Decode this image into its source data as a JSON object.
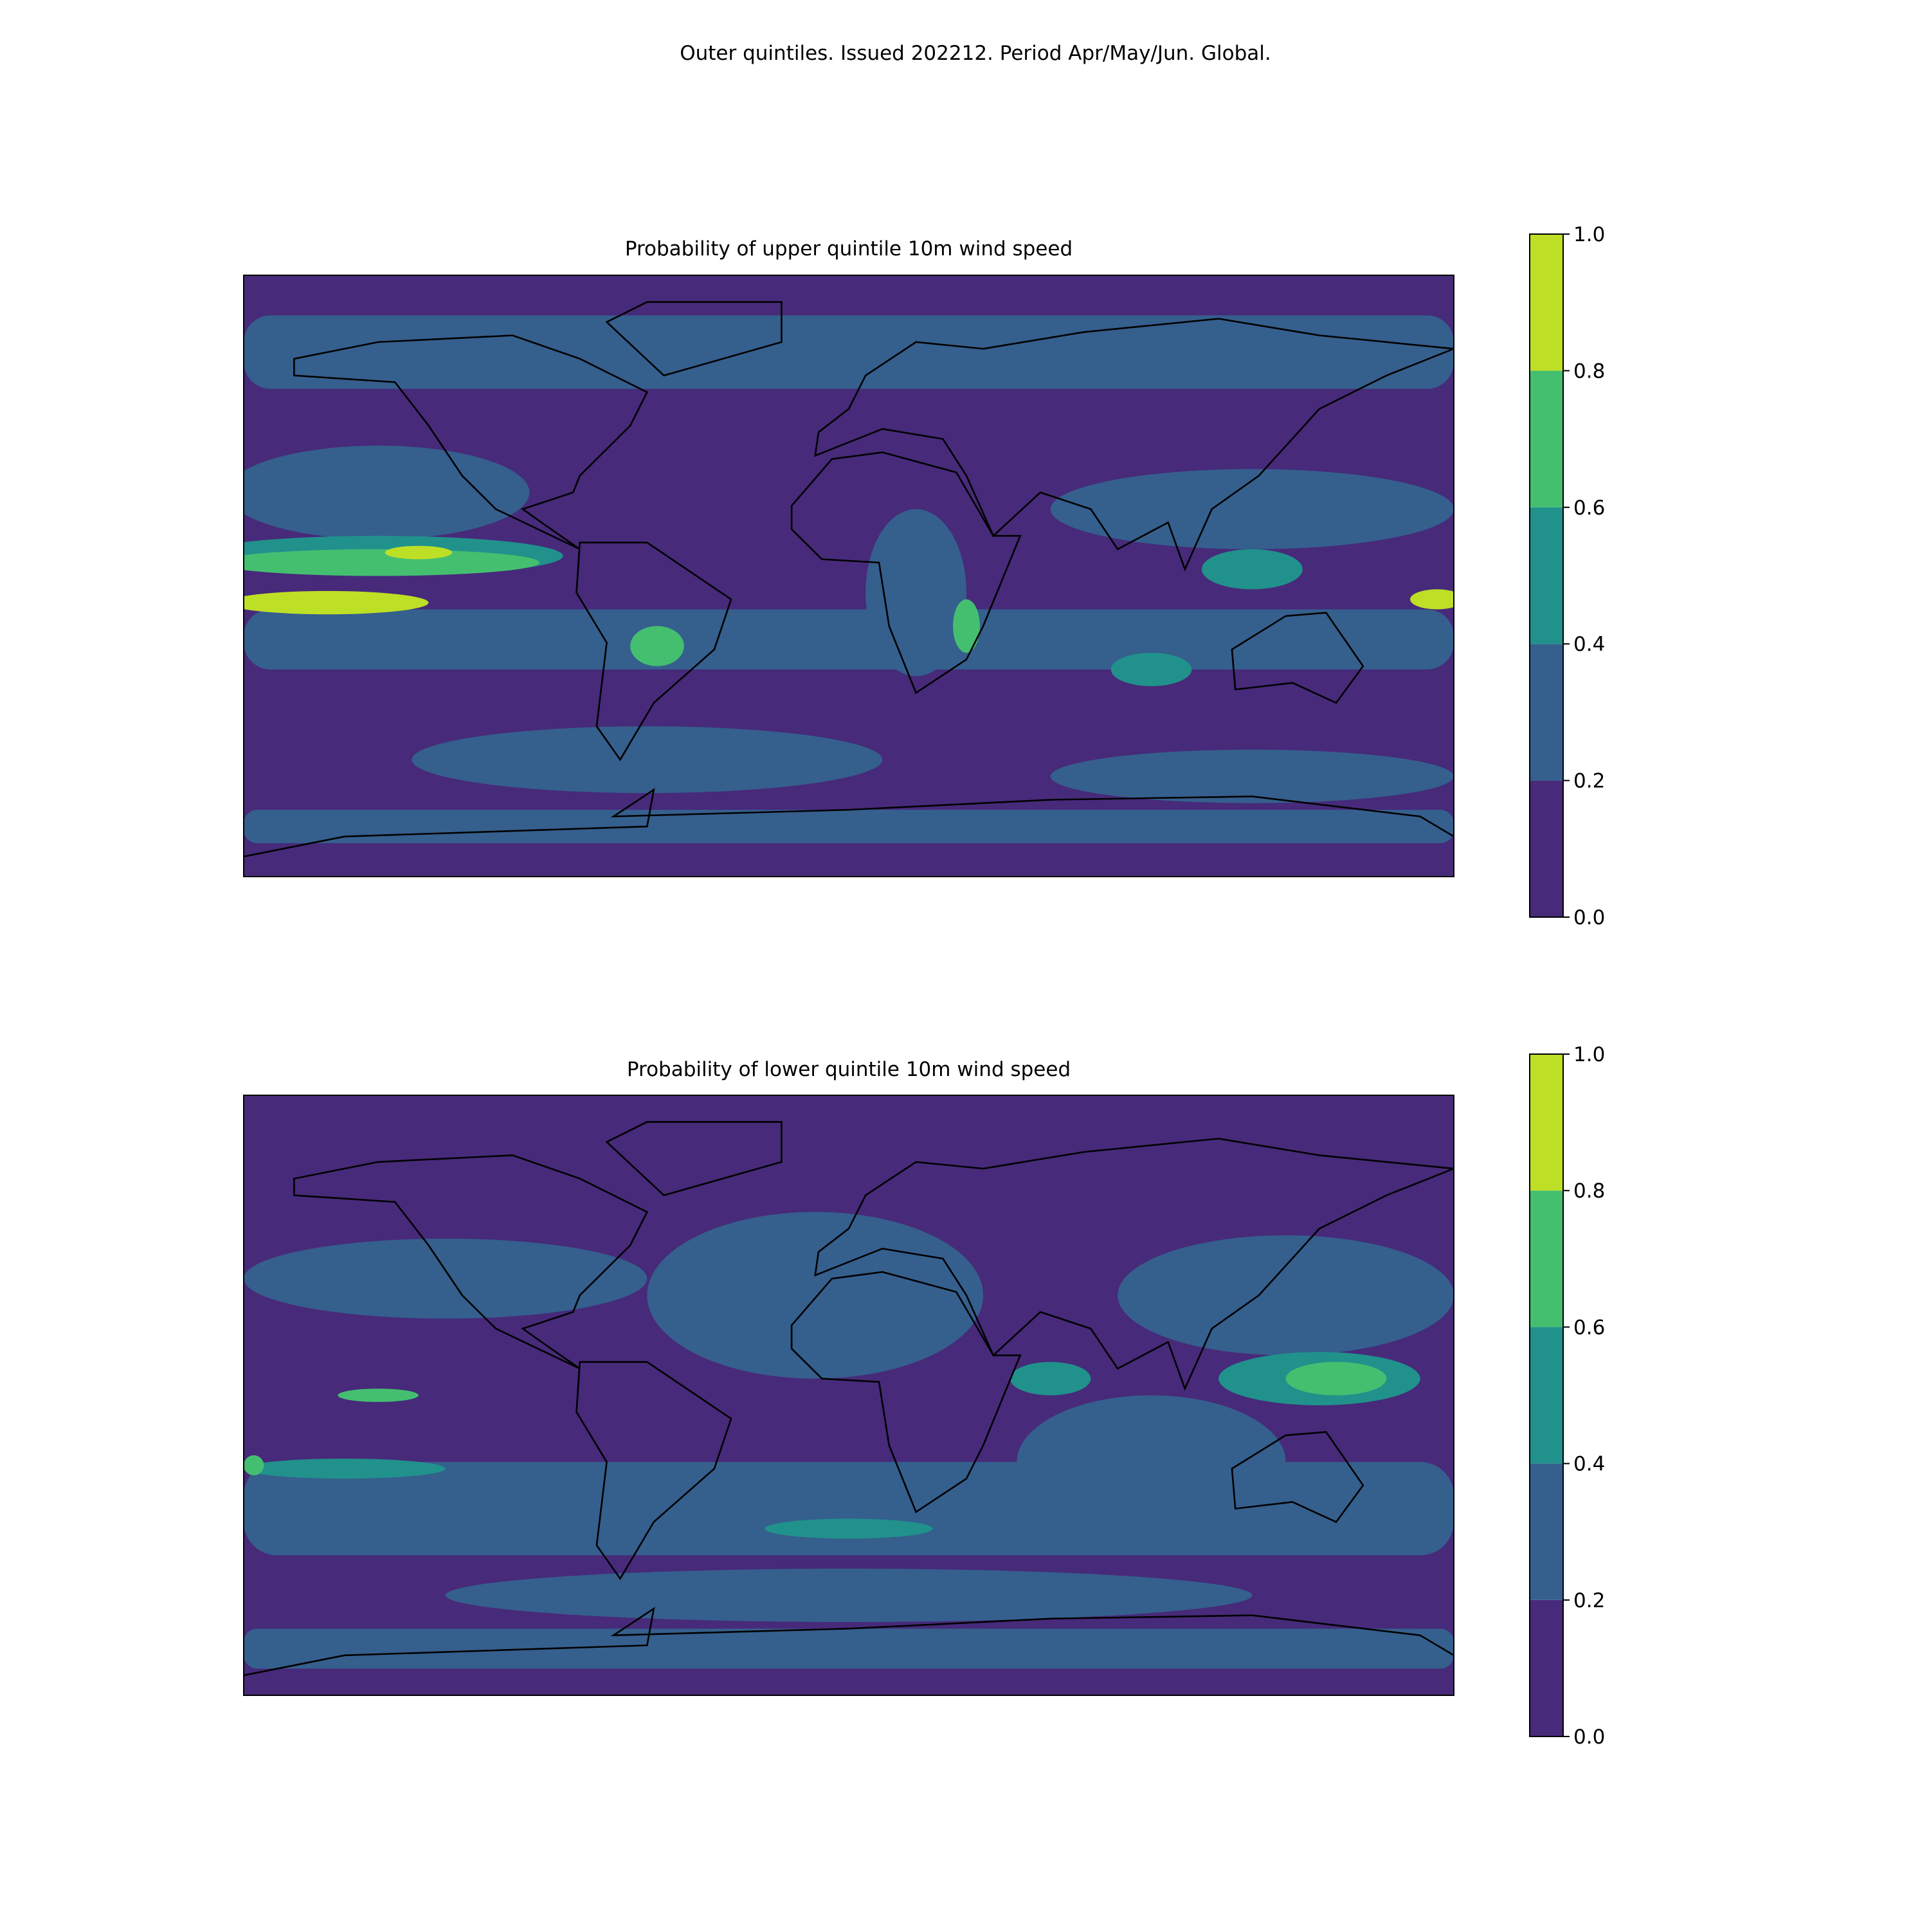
{
  "title": "Outer quintiles. Issued 202212. Period Apr/May/Jun. Global.",
  "panels": [
    {
      "title": "Probability of upper quintile 10m wind speed",
      "colorbar": {
        "lim": [
          0,
          1
        ],
        "ticks": [
          {
            "value": 0,
            "label": "0.0"
          },
          0.2,
          0.4,
          0.6,
          0.8,
          {
            "value": 1,
            "label": "1.0"
          }
        ],
        "colors": [
          "#472a7a",
          "#355f8d",
          "#21918c",
          "#44bf70",
          "#bddf26"
        ]
      }
    },
    {
      "title": "Probability of lower quintile 10m wind speed",
      "colorbar": {
        "lim": [
          0,
          1
        ],
        "ticks": [
          {
            "value": 0,
            "label": "0.0"
          },
          0.2,
          0.4,
          0.6,
          0.8,
          {
            "value": 1,
            "label": "1.0"
          }
        ],
        "colors": [
          "#472a7a",
          "#355f8d",
          "#21918c",
          "#44bf70",
          "#bddf26"
        ]
      }
    }
  ]
}
